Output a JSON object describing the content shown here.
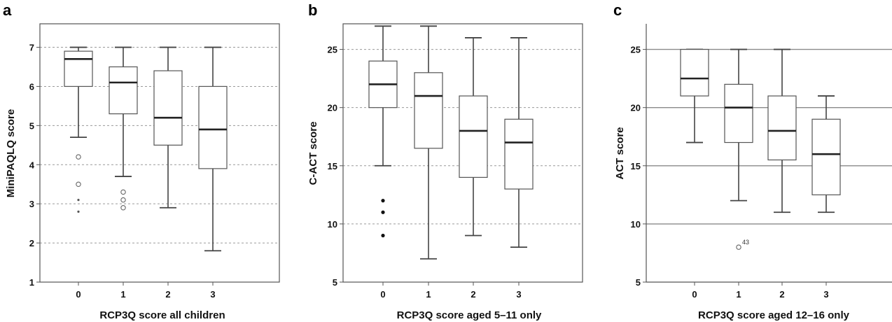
{
  "chart_data": [
    {
      "type": "box",
      "panel": "a",
      "xlabel": "RCP3Q score all children",
      "ylabel": "MiniPAQLQ score",
      "categories": [
        "0",
        "1",
        "2",
        "3"
      ],
      "ylim": [
        1,
        7.6
      ],
      "yticks": [
        1,
        2,
        3,
        4,
        5,
        6,
        7
      ],
      "gridlines": [
        2,
        3,
        4,
        5,
        6,
        7
      ],
      "grid_style": "dashed",
      "frame": "full",
      "boxes": [
        {
          "category": "0",
          "min": 4.7,
          "q1": 6.0,
          "median": 6.7,
          "q3": 6.9,
          "max": 7.0,
          "outliers": [
            {
              "value": 4.2,
              "marker": "open-circle"
            },
            {
              "value": 3.5,
              "marker": "open-circle"
            },
            {
              "value": 3.1,
              "marker": "star"
            },
            {
              "value": 2.8,
              "marker": "star"
            }
          ]
        },
        {
          "category": "1",
          "min": 3.7,
          "q1": 5.3,
          "median": 6.1,
          "q3": 6.5,
          "max": 7.0,
          "outliers": [
            {
              "value": 3.3,
              "marker": "open-circle"
            },
            {
              "value": 3.1,
              "marker": "open-circle"
            },
            {
              "value": 2.9,
              "marker": "open-circle"
            }
          ]
        },
        {
          "category": "2",
          "min": 2.9,
          "q1": 4.5,
          "median": 5.2,
          "q3": 6.4,
          "max": 7.0,
          "outliers": []
        },
        {
          "category": "3",
          "min": 1.8,
          "q1": 3.9,
          "median": 4.9,
          "q3": 6.0,
          "max": 7.0,
          "outliers": []
        }
      ]
    },
    {
      "type": "box",
      "panel": "b",
      "xlabel": "RCP3Q score aged 5–11 only",
      "ylabel": "C-ACT score",
      "categories": [
        "0",
        "1",
        "2",
        "3"
      ],
      "ylim": [
        5,
        27.2
      ],
      "yticks": [
        5,
        10,
        15,
        20,
        25
      ],
      "gridlines": [
        10,
        15,
        20,
        25
      ],
      "grid_style": "dashed",
      "frame": "full",
      "boxes": [
        {
          "category": "0",
          "min": 15,
          "q1": 20,
          "median": 22,
          "q3": 24,
          "max": 27,
          "outliers": [
            {
              "value": 12,
              "marker": "filled-dot"
            },
            {
              "value": 11,
              "marker": "filled-dot"
            },
            {
              "value": 9,
              "marker": "filled-dot"
            }
          ]
        },
        {
          "category": "1",
          "min": 7,
          "q1": 16.5,
          "median": 21,
          "q3": 23,
          "max": 27,
          "outliers": []
        },
        {
          "category": "2",
          "min": 9,
          "q1": 14,
          "median": 18,
          "q3": 21,
          "max": 26,
          "outliers": []
        },
        {
          "category": "3",
          "min": 8,
          "q1": 13,
          "median": 17,
          "q3": 19,
          "max": 26,
          "outliers": []
        }
      ]
    },
    {
      "type": "box",
      "panel": "c",
      "xlabel": "RCP3Q score aged 12–16 only",
      "ylabel": "ACT score",
      "categories": [
        "0",
        "1",
        "2",
        "3"
      ],
      "ylim": [
        5,
        27.2
      ],
      "yticks": [
        5,
        10,
        15,
        20,
        25
      ],
      "gridlines": [
        10,
        15,
        20,
        25
      ],
      "grid_style": "solid",
      "frame": "left-bottom",
      "boxes": [
        {
          "category": "0",
          "min": 17,
          "q1": 21,
          "median": 22.5,
          "q3": 25,
          "max": 25,
          "outliers": []
        },
        {
          "category": "1",
          "min": 12,
          "q1": 17,
          "median": 20,
          "q3": 22,
          "max": 25,
          "outliers": [
            {
              "value": 8,
              "marker": "open-circle",
              "label": "43"
            }
          ]
        },
        {
          "category": "2",
          "min": 11,
          "q1": 15.5,
          "median": 18,
          "q3": 21,
          "max": 25,
          "outliers": []
        },
        {
          "category": "3",
          "min": 11,
          "q1": 12.5,
          "median": 16,
          "q3": 19,
          "max": 21,
          "outliers": []
        }
      ]
    }
  ]
}
